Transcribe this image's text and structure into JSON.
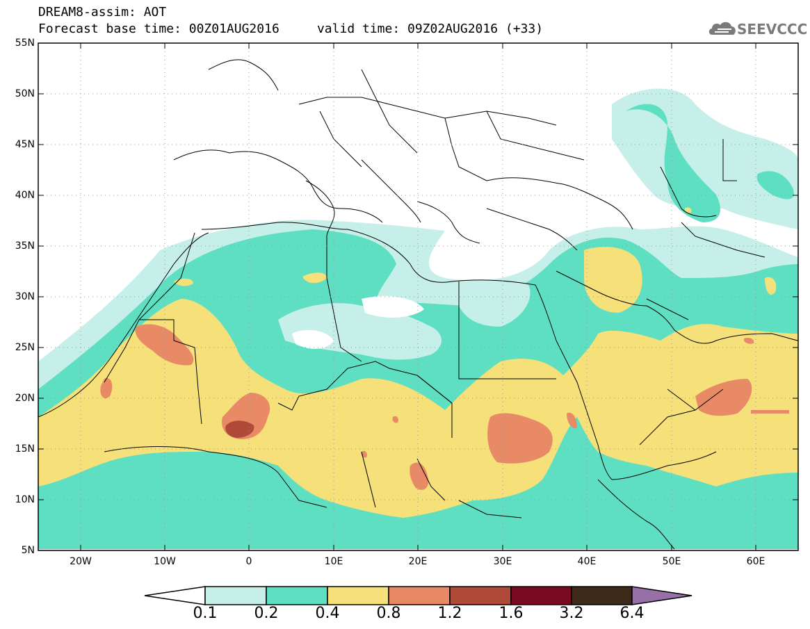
{
  "header": {
    "title": "DREAM8-assim: AOT",
    "subtitle": "Forecast base time: 00Z01AUG2016     valid time: 09Z02AUG2016 (+33)",
    "logo_text": "SEEVCCC",
    "logo_icon": "cloud-logo-icon"
  },
  "axes": {
    "lat_labels": [
      "55N",
      "50N",
      "45N",
      "40N",
      "35N",
      "30N",
      "25N",
      "20N",
      "15N",
      "10N",
      "5N"
    ],
    "lon_labels": [
      "20W",
      "10W",
      "0",
      "10E",
      "20E",
      "30E",
      "40E",
      "50E",
      "60E"
    ]
  },
  "colorbar": {
    "labels": [
      "0.1",
      "0.2",
      "0.4",
      "0.8",
      "1.2",
      "1.6",
      "3.2",
      "6.4"
    ],
    "colors": [
      "#ffffff",
      "#c7efea",
      "#5fdfc2",
      "#f5e07a",
      "#e88a66",
      "#b04a38",
      "#7a0a22",
      "#3d2a18",
      "#9870a8"
    ]
  },
  "palette": {
    "c1": "#c7efea",
    "c2": "#5fdfc2",
    "c3": "#f5e07a",
    "c4": "#e88a66",
    "c5": "#b04a38"
  }
}
